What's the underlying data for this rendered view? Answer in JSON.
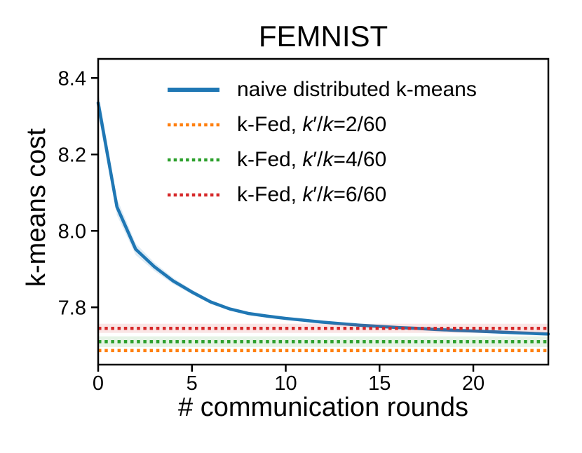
{
  "figure": {
    "background": "#ffffff",
    "axis_color": "#000000"
  },
  "chart_data": {
    "type": "line",
    "title": "FEMNIST",
    "xlabel": "# communication rounds",
    "ylabel": "k-means cost",
    "xlim": [
      0,
      24
    ],
    "ylim": [
      7.65,
      8.45
    ],
    "xticks": [
      0,
      5,
      10,
      15,
      20
    ],
    "xticklabels": [
      "0",
      "5",
      "10",
      "15",
      "20"
    ],
    "yticks": [
      7.8,
      8.0,
      8.2,
      8.4
    ],
    "yticklabels": [
      "7.8",
      "8.0",
      "8.2",
      "8.4"
    ],
    "grid": false,
    "legend": {
      "position": "upper-center-inside",
      "frame": false
    },
    "series": [
      {
        "name": "naive distributed k-means",
        "plot_type": "curve",
        "color": "#1f77b4",
        "linestyle": "solid",
        "band_opacity": 0.15,
        "x": [
          0,
          1,
          2,
          3,
          4,
          5,
          6,
          7,
          8,
          9,
          10,
          11,
          12,
          13,
          14,
          15,
          16,
          17,
          18,
          19,
          20,
          21,
          22,
          23,
          24
        ],
        "y": [
          8.335,
          8.063,
          7.952,
          7.906,
          7.869,
          7.84,
          7.814,
          7.796,
          7.784,
          7.777,
          7.771,
          7.766,
          7.761,
          7.757,
          7.753,
          7.75,
          7.747,
          7.745,
          7.742,
          7.74,
          7.738,
          7.736,
          7.734,
          7.732,
          7.73
        ],
        "band": [
          0.03,
          0.022,
          0.015,
          0.011,
          0.008,
          0.006,
          0.005,
          0.004,
          0.004,
          0.003,
          0.003,
          0.003,
          0.003,
          0.003,
          0.002,
          0.002,
          0.002,
          0.002,
          0.002,
          0.002,
          0.002,
          0.002,
          0.002,
          0.002,
          0.002
        ]
      },
      {
        "name": "k-Fed, k′/k=2/60",
        "plot_type": "hline",
        "color": "#ff7f0e",
        "linestyle": "dotted",
        "value": 7.687,
        "band": 0,
        "band_opacity": 0
      },
      {
        "name": "k-Fed, k′/k=4/60",
        "plot_type": "hline",
        "color": "#2ca02c",
        "linestyle": "dotted",
        "value": 7.71,
        "band": 0.014,
        "band_opacity": 0.12
      },
      {
        "name": "k-Fed, k′/k=6/60",
        "plot_type": "hline",
        "color": "#d62728",
        "linestyle": "dotted",
        "value": 7.745,
        "band": 0.012,
        "band_opacity": 0.12
      }
    ]
  }
}
